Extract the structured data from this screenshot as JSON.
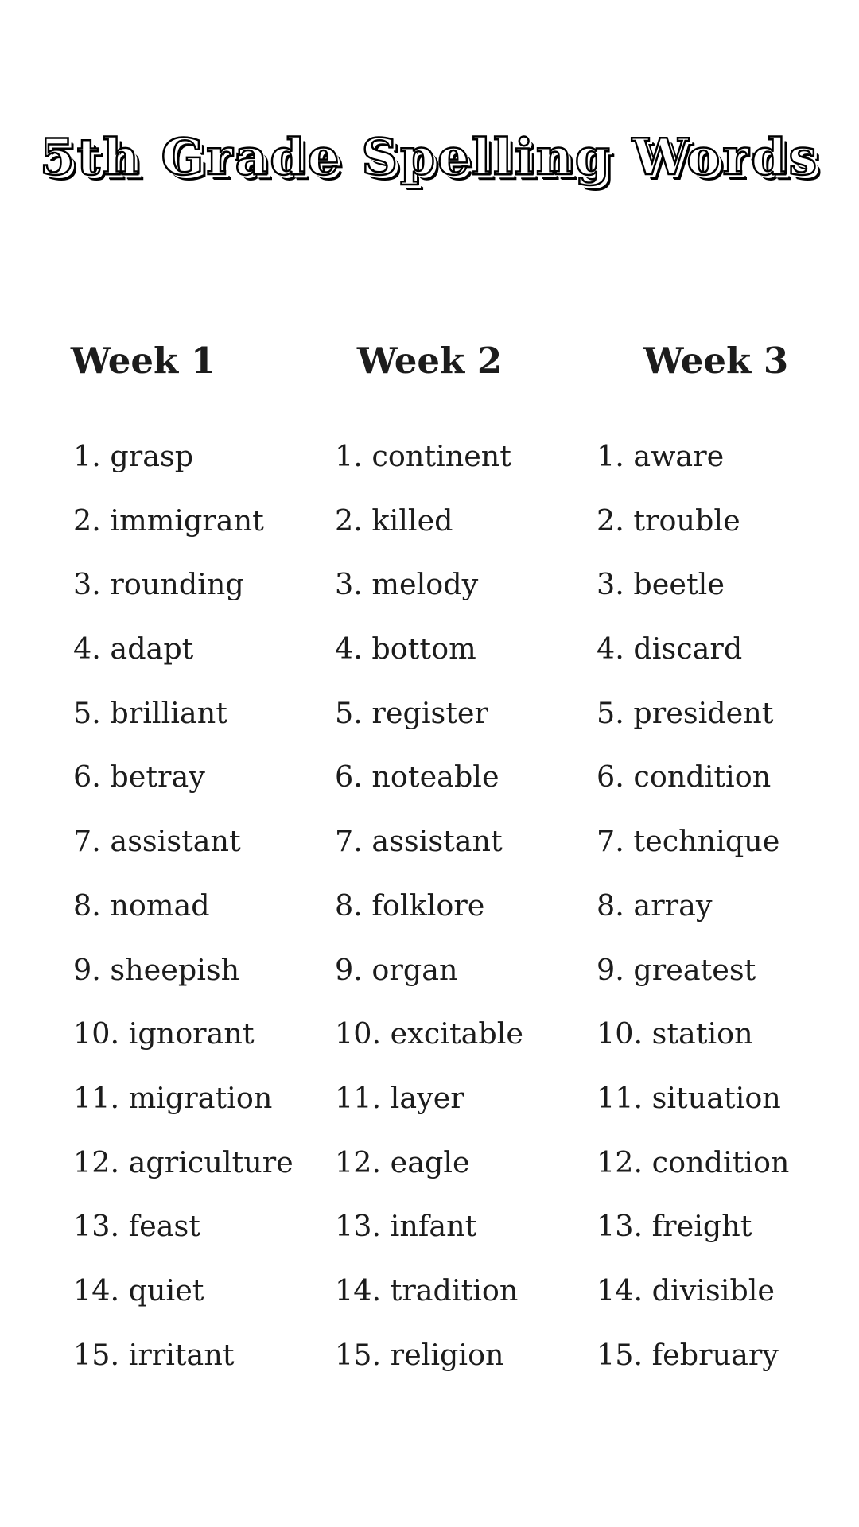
{
  "title": "5th Grade Spelling Words",
  "colors": {
    "background": "#ffffff",
    "text": "#1c1c1c",
    "title_fill": "#ffffff",
    "title_outline": "#000000"
  },
  "columns": [
    {
      "header": "Week 1",
      "words": [
        "grasp",
        "immigrant",
        "rounding",
        "adapt",
        "brilliant",
        "betray",
        "assistant",
        "nomad",
        "sheepish",
        "ignorant",
        "migration",
        "agriculture",
        "feast",
        "quiet",
        "irritant"
      ]
    },
    {
      "header": "Week 2",
      "words": [
        "continent",
        "killed",
        "melody",
        "bottom",
        "register",
        "noteable",
        "assistant",
        "folklore",
        "organ",
        "excitable",
        "layer",
        "eagle",
        "infant",
        "tradition",
        "religion"
      ]
    },
    {
      "header": "Week 3",
      "words": [
        "aware",
        "trouble",
        "beetle",
        "discard",
        "president",
        "condition",
        "technique",
        "array",
        "greatest",
        "station",
        "situation",
        "condition",
        "freight",
        "divisible",
        "february"
      ]
    }
  ]
}
